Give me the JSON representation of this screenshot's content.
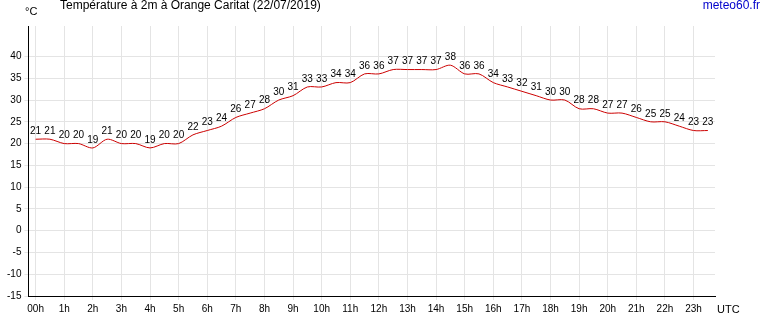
{
  "chart_data": {
    "type": "line",
    "title": "Température à 2m à Orange Caritat (22/07/2019)",
    "annotation": "meteo60.fr",
    "y_label": "°C",
    "x_label": "UTC",
    "x": [
      0,
      0.5,
      1,
      1.5,
      2,
      2.5,
      3,
      3.5,
      4,
      4.5,
      5,
      5.5,
      6,
      6.5,
      7,
      7.5,
      8,
      8.5,
      9,
      9.5,
      10,
      10.5,
      11,
      11.5,
      12,
      12.5,
      13,
      13.5,
      14,
      14.5,
      15,
      15.5,
      16,
      16.5,
      17,
      17.5,
      18,
      18.5,
      19,
      19.5,
      20,
      20.5,
      21,
      21.5,
      22,
      22.5,
      23,
      23.5
    ],
    "values": [
      21,
      21,
      20,
      20,
      19,
      21,
      20,
      20,
      19,
      20,
      20,
      22,
      23,
      24,
      26,
      27,
      28,
      30,
      31,
      33,
      33,
      34,
      34,
      36,
      36,
      37,
      37,
      37,
      37,
      38,
      36,
      36,
      34,
      33,
      32,
      31,
      30,
      30,
      28,
      28,
      27,
      27,
      26,
      25,
      25,
      24,
      23,
      23
    ],
    "color": "#cc0000",
    "xlim": [
      -0.25,
      23.75
    ],
    "xticks": [
      {
        "value": 0,
        "label": "00h"
      },
      {
        "value": 1,
        "label": "1h"
      },
      {
        "value": 2,
        "label": "2h"
      },
      {
        "value": 3,
        "label": "3h"
      },
      {
        "value": 4,
        "label": "4h"
      },
      {
        "value": 5,
        "label": "5h"
      },
      {
        "value": 6,
        "label": "6h"
      },
      {
        "value": 7,
        "label": "7h"
      },
      {
        "value": 8,
        "label": "8h"
      },
      {
        "value": 9,
        "label": "9h"
      },
      {
        "value": 10,
        "label": "10h"
      },
      {
        "value": 11,
        "label": "11h"
      },
      {
        "value": 12,
        "label": "12h"
      },
      {
        "value": 13,
        "label": "13h"
      },
      {
        "value": 14,
        "label": "14h"
      },
      {
        "value": 15,
        "label": "15h"
      },
      {
        "value": 16,
        "label": "16h"
      },
      {
        "value": 17,
        "label": "17h"
      },
      {
        "value": 18,
        "label": "18h"
      },
      {
        "value": 19,
        "label": "19h"
      },
      {
        "value": 20,
        "label": "20h"
      },
      {
        "value": 21,
        "label": "21h"
      },
      {
        "value": 22,
        "label": "22h"
      },
      {
        "value": 23,
        "label": "23h"
      }
    ],
    "ylim": [
      -15,
      47
    ],
    "yticks": [
      -15,
      -10,
      -5,
      0,
      5,
      10,
      15,
      20,
      25,
      30,
      35,
      40
    ],
    "grid": true,
    "data_labels": true
  }
}
